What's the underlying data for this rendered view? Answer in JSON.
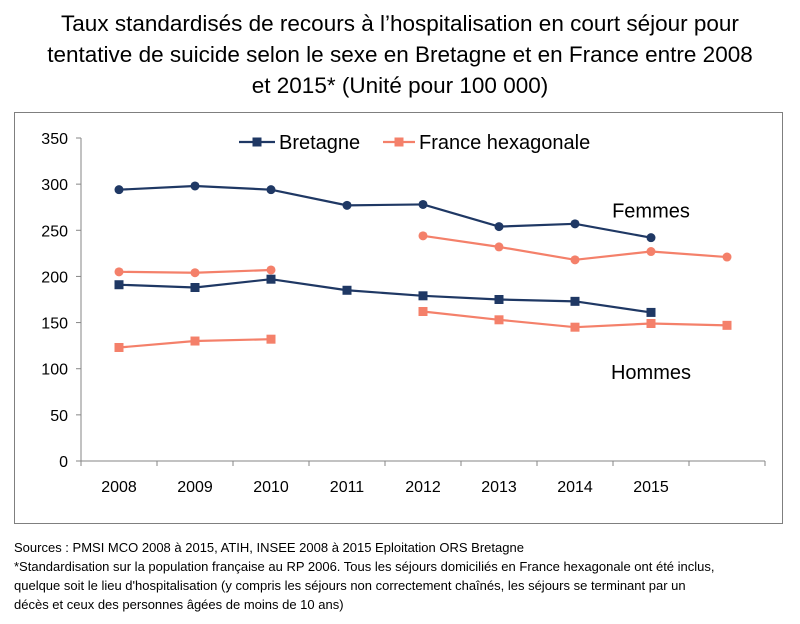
{
  "title": {
    "line1": "Taux standardisés de recours à l’hospitalisation en court séjour pour",
    "line2": "tentative de suicide selon le sexe en Bretagne et en France entre 2008",
    "line3": "et 2015*  (Unité pour 100 000)"
  },
  "chart_data": {
    "type": "line",
    "categories": [
      "2008",
      "2009",
      "2010",
      "2011",
      "2012",
      "2013",
      "2014",
      "2015",
      ""
    ],
    "ylim": [
      0,
      350
    ],
    "yticks": [
      0,
      50,
      100,
      150,
      200,
      250,
      300,
      350
    ],
    "grid": false,
    "legend": {
      "placement": "top",
      "entries": [
        {
          "label": "Bretagne",
          "color": "#1f3864",
          "marker": "square"
        },
        {
          "label": "France hexagonale",
          "color": "#f4806a",
          "marker": "square"
        }
      ]
    },
    "annotations": [
      {
        "text": "Femmes",
        "x": "2015",
        "y": 264
      },
      {
        "text": "Hommes",
        "x": "2015",
        "y": 89
      }
    ],
    "series": [
      {
        "name": "Bretagne",
        "group": "Femmes",
        "color": "#1f3864",
        "marker": "circle",
        "values": [
          294,
          298,
          294,
          277,
          278,
          254,
          257,
          242,
          null
        ]
      },
      {
        "name": "France hexagonale",
        "group": "Femmes",
        "color": "#f4806a",
        "marker": "circle",
        "values": [
          205,
          204,
          207,
          null,
          244,
          232,
          218,
          227,
          221
        ]
      },
      {
        "name": "Bretagne",
        "group": "Hommes",
        "color": "#1f3864",
        "marker": "square",
        "values": [
          191,
          188,
          197,
          185,
          179,
          175,
          173,
          161,
          null
        ]
      },
      {
        "name": "France hexagonale",
        "group": "Hommes",
        "color": "#f4806a",
        "marker": "square",
        "values": [
          123,
          130,
          132,
          null,
          162,
          153,
          145,
          149,
          147
        ]
      }
    ]
  },
  "sources": {
    "line1": "Sources : PMSI MCO 2008 à 2015, ATIH, INSEE 2008 à 2015     Eploitation ORS Bretagne",
    "line2": "*Standardisation sur la population française au RP 2006. Tous les séjours domiciliés en France hexagonale ont été inclus,",
    "line3": "quelque soit le lieu d'hospitalisation (y compris les séjours non correctement chaînés, les séjours se terminant par un",
    "line4": "décès et ceux des personnes âgées de moins de 10 ans)"
  }
}
